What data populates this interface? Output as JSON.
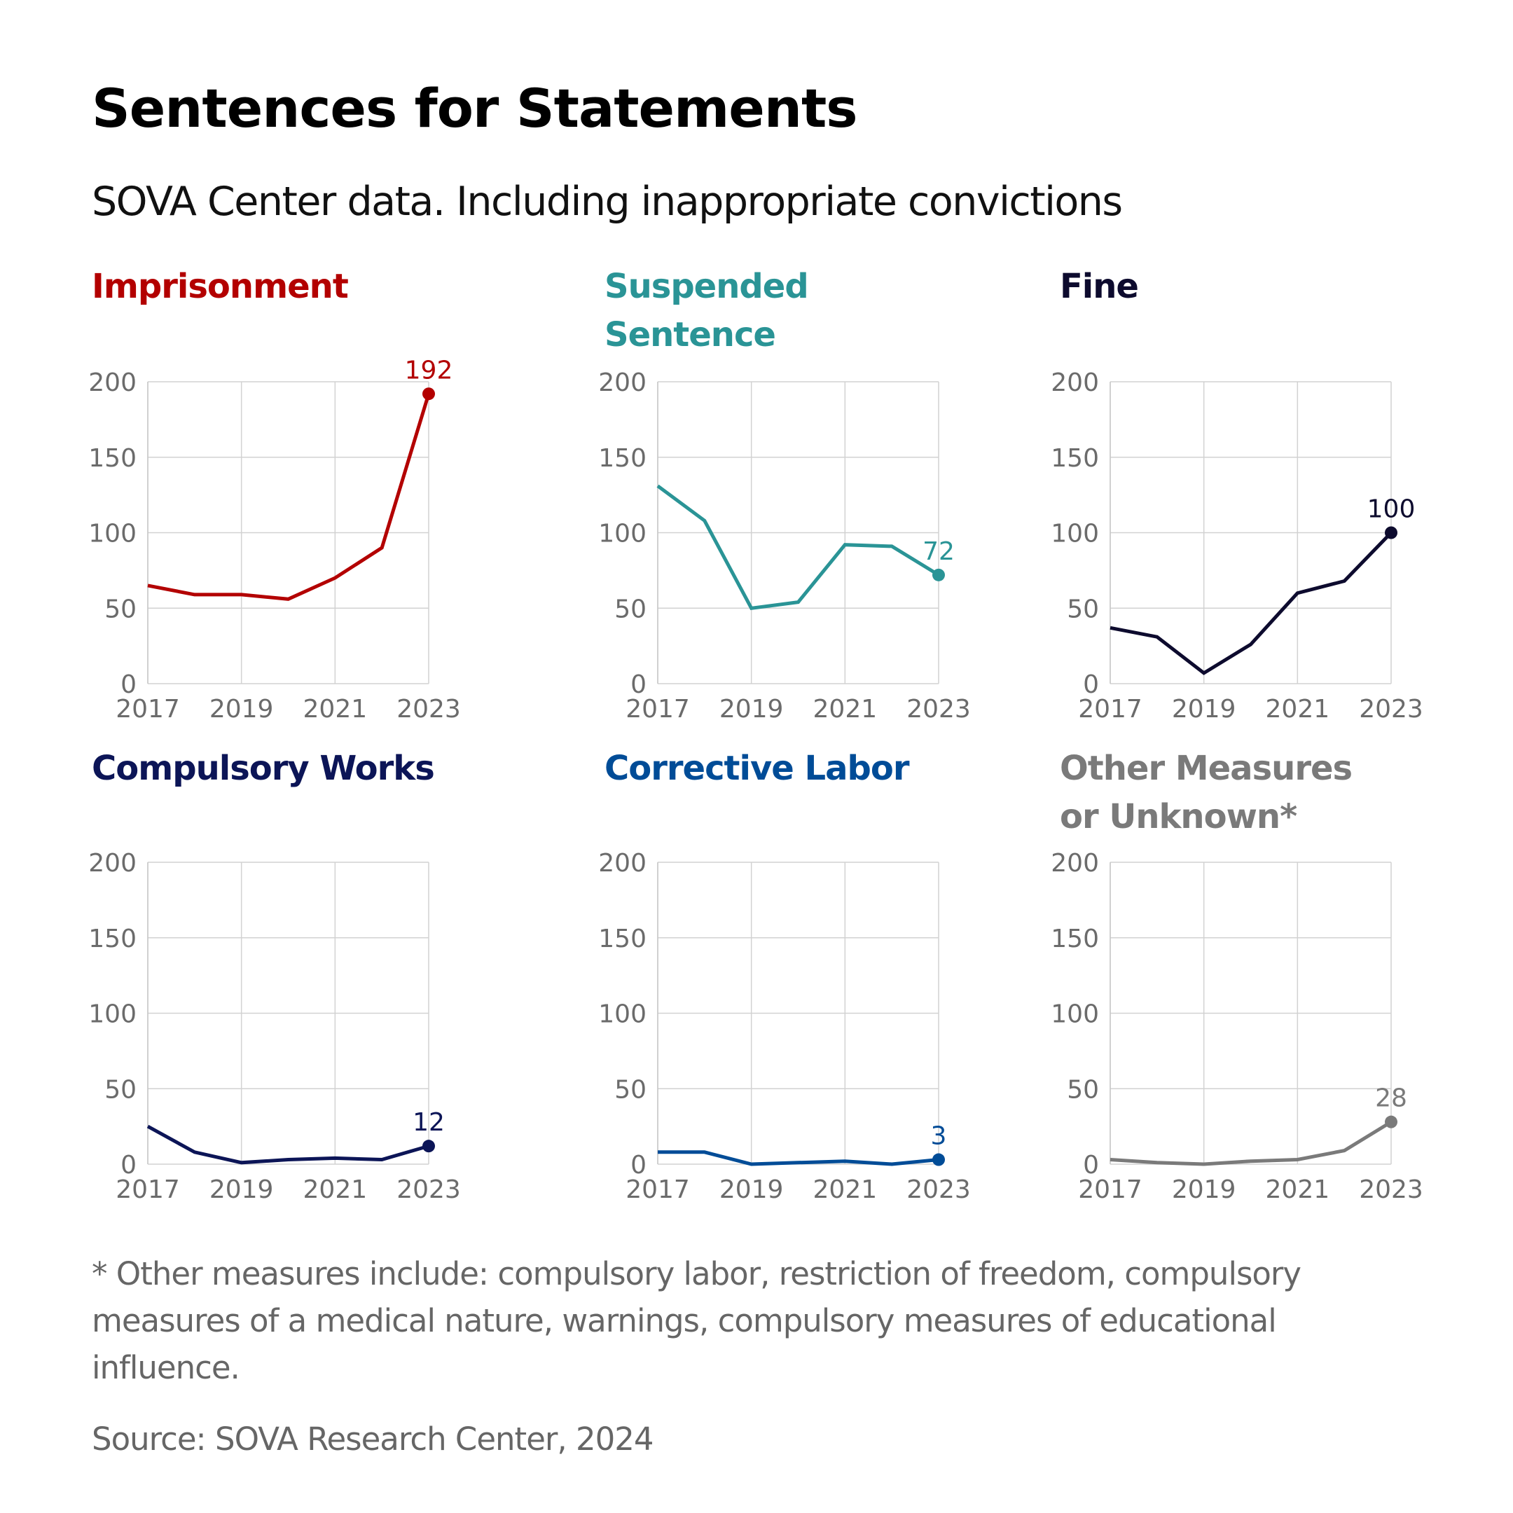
{
  "title": "Sentences for Statements",
  "subtitle": "SOVA Center data. Including inappropriate convictions",
  "footnote": "* Other measures include: compulsory labor, restriction of freedom, compulsory measures of a medical nature, warnings, compulsory measures of educational influence.",
  "source": "Source: SOVA Research Center, 2024",
  "chart_data": [
    {
      "type": "line",
      "title": "Imprisonment",
      "color": "#b30000",
      "x": [
        2017,
        2018,
        2019,
        2020,
        2021,
        2022,
        2023
      ],
      "values": [
        65,
        59,
        59,
        56,
        70,
        90,
        192
      ],
      "end_label": "192",
      "xticks": [
        "2017",
        "2019",
        "2021",
        "2023"
      ],
      "yticks": [
        "0",
        "50",
        "100",
        "150",
        "200"
      ],
      "ylim": [
        0,
        200
      ],
      "grid": true
    },
    {
      "type": "line",
      "title": "Suspended Sentence",
      "color": "#2a9496",
      "x": [
        2017,
        2018,
        2019,
        2020,
        2021,
        2022,
        2023
      ],
      "values": [
        131,
        108,
        50,
        54,
        92,
        91,
        72
      ],
      "end_label": "72",
      "xticks": [
        "2017",
        "2019",
        "2021",
        "2023"
      ],
      "yticks": [
        "0",
        "50",
        "100",
        "150",
        "200"
      ],
      "ylim": [
        0,
        200
      ],
      "grid": true
    },
    {
      "type": "line",
      "title": "Fine",
      "color": "#0d0b2e",
      "x": [
        2017,
        2018,
        2019,
        2020,
        2021,
        2022,
        2023
      ],
      "values": [
        37,
        31,
        7,
        26,
        60,
        68,
        100
      ],
      "end_label": "100",
      "xticks": [
        "2017",
        "2019",
        "2021",
        "2023"
      ],
      "yticks": [
        "0",
        "50",
        "100",
        "150",
        "200"
      ],
      "ylim": [
        0,
        200
      ],
      "grid": true
    },
    {
      "type": "line",
      "title": "Compulsory Works",
      "color": "#0c1557",
      "x": [
        2017,
        2018,
        2019,
        2020,
        2021,
        2022,
        2023
      ],
      "values": [
        25,
        8,
        1,
        3,
        4,
        3,
        12
      ],
      "end_label": "12",
      "xticks": [
        "2017",
        "2019",
        "2021",
        "2023"
      ],
      "yticks": [
        "0",
        "50",
        "100",
        "150",
        "200"
      ],
      "ylim": [
        0,
        200
      ],
      "grid": true
    },
    {
      "type": "line",
      "title": "Corrective Labor",
      "color": "#004c97",
      "x": [
        2017,
        2018,
        2019,
        2020,
        2021,
        2022,
        2023
      ],
      "values": [
        8,
        8,
        0,
        1,
        2,
        0,
        3
      ],
      "end_label": "3",
      "xticks": [
        "2017",
        "2019",
        "2021",
        "2023"
      ],
      "yticks": [
        "0",
        "50",
        "100",
        "150",
        "200"
      ],
      "ylim": [
        0,
        200
      ],
      "grid": true
    },
    {
      "type": "line",
      "title": "Other Measures or Unknown*",
      "color": "#7a7a7a",
      "x": [
        2017,
        2018,
        2019,
        2020,
        2021,
        2022,
        2023
      ],
      "values": [
        3,
        1,
        0,
        2,
        3,
        9,
        28
      ],
      "end_label": "28",
      "xticks": [
        "2017",
        "2019",
        "2021",
        "2023"
      ],
      "yticks": [
        "0",
        "50",
        "100",
        "150",
        "200"
      ],
      "ylim": [
        0,
        200
      ],
      "grid": true
    }
  ]
}
